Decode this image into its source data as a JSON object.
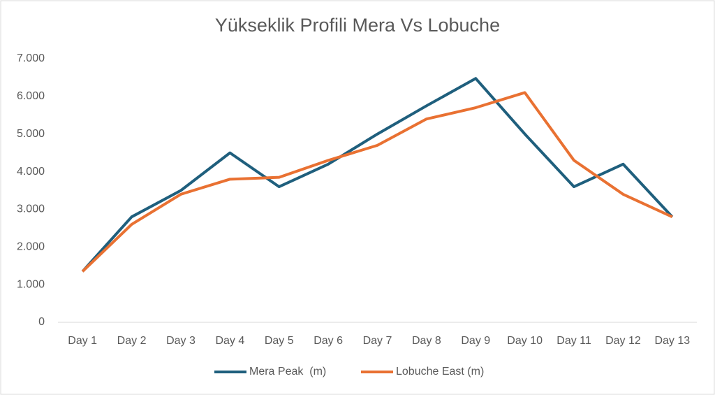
{
  "chart_data": {
    "type": "line",
    "title": "Yükseklik Profili Mera Vs Lobuche",
    "categories": [
      "Day 1",
      "Day 2",
      "Day 3",
      "Day 4",
      "Day 5",
      "Day 6",
      "Day 7",
      "Day 8",
      "Day 9",
      "Day 10",
      "Day 11",
      "Day 12",
      "Day 13"
    ],
    "series": [
      {
        "name": "Mera Peak  (m)",
        "color": "#1f5f7d",
        "values": [
          1350,
          2800,
          3500,
          4500,
          3600,
          4200,
          5000,
          5750,
          6476,
          5000,
          3600,
          4200,
          2800
        ]
      },
      {
        "name": "Lobuche East (m)",
        "color": "#e97132",
        "values": [
          1350,
          2600,
          3400,
          3800,
          3850,
          4300,
          4700,
          5400,
          5700,
          6100,
          4300,
          3400,
          2800
        ]
      }
    ],
    "ylim": [
      0,
      7000
    ],
    "yticks": [
      0,
      {
        "value": 1000,
        "label": "1.000"
      },
      {
        "value": 2000,
        "label": "2.000"
      },
      {
        "value": 3000,
        "label": "3.000"
      },
      {
        "value": 4000,
        "label": "4.000"
      },
      {
        "value": 5000,
        "label": "5.000"
      },
      {
        "value": 6000,
        "label": "6.000"
      },
      {
        "value": 7000,
        "label": "7.000"
      }
    ],
    "grid": false,
    "legend": "bottom"
  }
}
